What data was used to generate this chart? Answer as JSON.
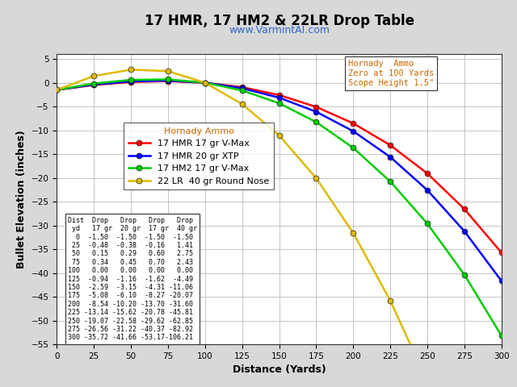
{
  "title": "17 HMR, 17 HM2 & 22LR Drop Table",
  "subtitle": "www.VarmintAI.com",
  "xlabel": "Distance (Yards)",
  "ylabel": "Bullet Elevation (inches)",
  "xlim": [
    0,
    300
  ],
  "ylim": [
    -55,
    6
  ],
  "distances": [
    0,
    25,
    50,
    75,
    100,
    125,
    150,
    175,
    200,
    225,
    250,
    275,
    300
  ],
  "series": {
    "17 HMR 17 gr V-Max": {
      "color": "#ff0000",
      "values": [
        -1.5,
        -0.48,
        0.15,
        0.34,
        0.0,
        -0.94,
        -2.59,
        -5.08,
        -8.54,
        -13.14,
        -19.07,
        -26.56,
        -35.72
      ]
    },
    "17 HMR 20 gr XTP": {
      "color": "#0000ff",
      "values": [
        -1.5,
        -0.38,
        0.29,
        0.45,
        0.0,
        -1.16,
        -3.15,
        -6.1,
        -10.2,
        -15.62,
        -22.58,
        -31.22,
        -41.66
      ]
    },
    "17 HM2 17 gr V-Max": {
      "color": "#00cc00",
      "values": [
        -1.5,
        -0.16,
        0.6,
        0.7,
        0.0,
        -1.62,
        -4.31,
        -8.27,
        -13.7,
        -20.78,
        -29.62,
        -40.37,
        -53.17
      ]
    },
    "22 LR  40 gr Round Nose": {
      "color": "#ddbb00",
      "values": [
        -1.5,
        1.41,
        2.75,
        2.43,
        0.0,
        -4.49,
        -11.06,
        -20.07,
        -31.6,
        -45.81,
        -62.85,
        -82.92,
        -106.21
      ]
    }
  },
  "legend_title": "Hornady Ammo",
  "annotation_text": "Hornady  Ammo\nZero at 100 Yards\nScope Height 1.5\"",
  "table_text": "Dist  Drop   Drop   Drop   Drop\n yd   17 gr  20 gr  17 gr  40 gr\n  0  -1.50  -1.50  -1.50  -1.50\n 25  -0.48  -0.38  -0.16   1.41\n 50   0.15   0.29   0.60   2.75\n 75   0.34   0.45   0.70   2.43\n100   0.00   0.00   0.00   0.00\n125  -0.94  -1.16  -1.62  -4.49\n150  -2.59  -3.15  -4.31 -11.06\n175  -5.08  -6.10  -8.27 -20.07\n200  -8.54 -10.20 -13.70 -31.60\n225 -13.14 -15.62 -20.78 -45.81\n250 -19.07 -22.58 -29.62 -62.85\n275 -26.56 -31.22 -40.37 -82.92\n300 -35.72 -41.66 -53.17-106.21",
  "xticks": [
    0,
    25,
    50,
    75,
    100,
    125,
    150,
    175,
    200,
    225,
    250,
    275,
    300
  ],
  "yticks": [
    -55,
    -50,
    -45,
    -40,
    -35,
    -30,
    -25,
    -20,
    -15,
    -10,
    -5,
    0,
    5
  ],
  "bg_color": "#d8d8d8",
  "plot_bg_color": "#ffffff",
  "grid_color": "#bbbbbb",
  "title_fontsize": 12,
  "subtitle_fontsize": 9,
  "axis_label_fontsize": 9,
  "tick_fontsize": 7.5,
  "legend_fontsize": 8,
  "annotation_fontsize": 7.5,
  "table_fontsize": 6,
  "marker": "o",
  "markersize": 5,
  "linewidth": 1.8
}
